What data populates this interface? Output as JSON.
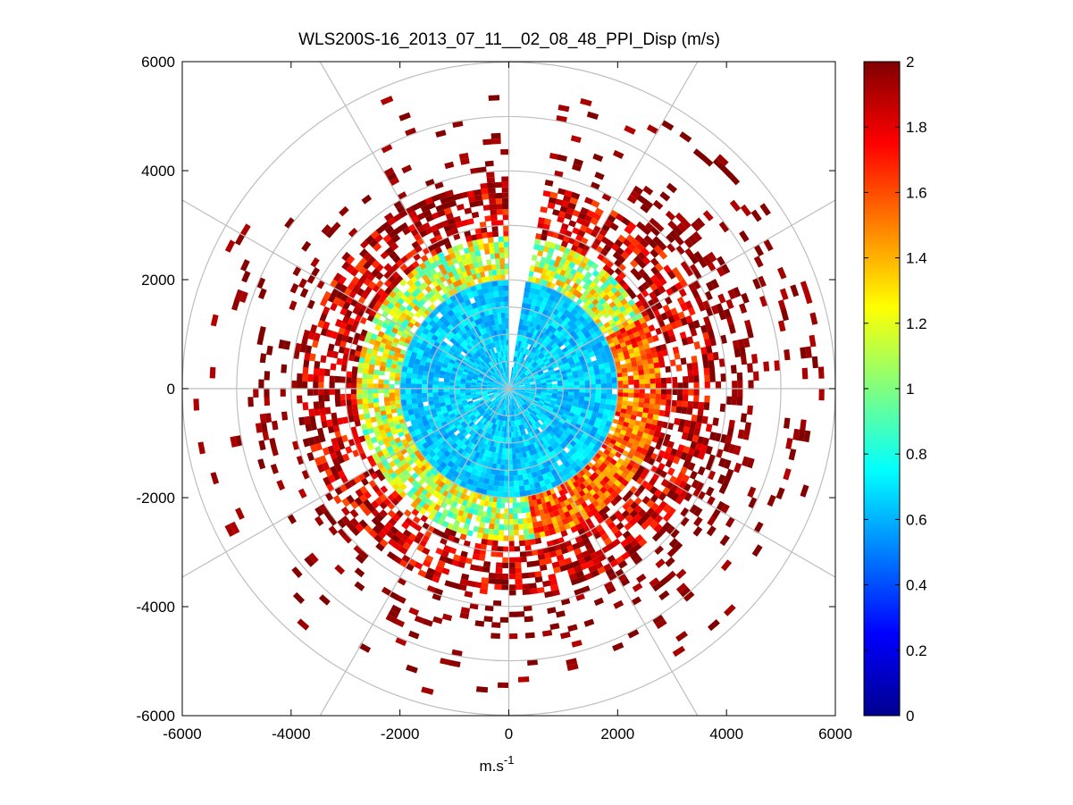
{
  "chart_data": {
    "type": "heatmap",
    "subtype": "polar-ppi",
    "title": "WLS200S-16_2013_07_11__02_08_48_PPI_Disp (m/s)",
    "xlabel": "m.s",
    "xlabel_superscript": "-1",
    "ylabel": "",
    "xlim": [
      -6000,
      6000
    ],
    "ylim": [
      -6000,
      6000
    ],
    "x_ticks": [
      -6000,
      -4000,
      -2000,
      0,
      2000,
      4000,
      6000
    ],
    "y_ticks": [
      -6000,
      -4000,
      -2000,
      0,
      2000,
      4000,
      6000
    ],
    "x_tick_labels": [
      "-6000",
      "-4000",
      "-2000",
      "0",
      "2000",
      "4000",
      "6000"
    ],
    "y_tick_labels": [
      "6000",
      "4000",
      "2000",
      "0",
      "-2000",
      "-4000",
      "-6000"
    ],
    "polar_grid": {
      "ring_radii": [
        500,
        1000,
        1500,
        2000,
        3000,
        4000,
        5000,
        6000
      ],
      "spoke_angles_deg": [
        0,
        30,
        60,
        90,
        120,
        150,
        180,
        210,
        240,
        270,
        300,
        330
      ],
      "color": "#bebebe"
    },
    "colorbar": {
      "min": 0,
      "max": 2,
      "ticks": [
        0,
        0.2,
        0.4,
        0.6,
        0.8,
        1,
        1.2,
        1.4,
        1.6,
        1.8,
        2
      ],
      "tick_labels": [
        "0",
        "0.2",
        "0.4",
        "0.6",
        "0.8",
        "1",
        "1.2",
        "1.4",
        "1.6",
        "1.8",
        "2"
      ],
      "colormap": "jet",
      "levels": 64
    },
    "data_gap_sector_deg": [
      359,
      8
    ],
    "value_zones": [
      {
        "range_m": [
          0,
          2000
        ],
        "typical_value": 0.65,
        "spread": 0.12
      },
      {
        "range_m": [
          2000,
          2800
        ],
        "typical_value": 1.15,
        "spread": 0.35
      },
      {
        "range_m": [
          2800,
          3800
        ],
        "typical_value": 1.85,
        "spread": 0.25
      },
      {
        "range_m": [
          3800,
          5800
        ],
        "typical_value": 1.97,
        "spread": 0.08
      }
    ]
  }
}
